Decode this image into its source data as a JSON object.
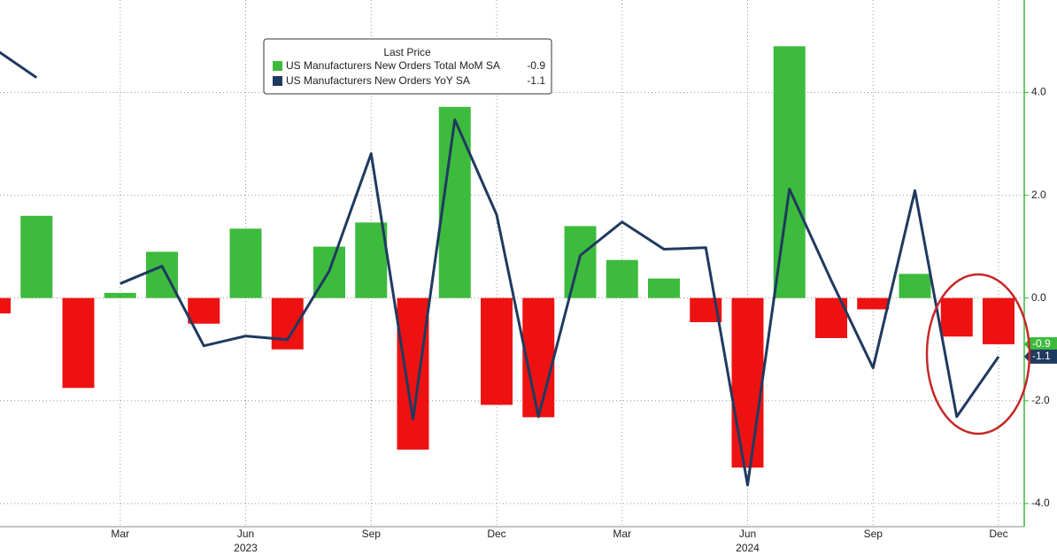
{
  "chart_data": {
    "type": "bar_line",
    "categories": [
      null,
      null,
      null,
      "Mar",
      null,
      null,
      "Jun",
      null,
      null,
      "Sep",
      null,
      null,
      "Dec",
      null,
      null,
      "Mar",
      null,
      null,
      "Jun",
      null,
      null,
      "Sep",
      null,
      null,
      "Dec"
    ],
    "category_years": [
      null,
      null,
      null,
      null,
      null,
      null,
      "2023",
      null,
      null,
      null,
      null,
      null,
      null,
      null,
      null,
      null,
      null,
      null,
      "2024",
      null,
      null,
      null,
      null,
      null,
      null
    ],
    "legend_title": "Last Price",
    "series": [
      {
        "name": "US Manufacturers New Orders Total MoM SA",
        "type": "bar",
        "color": "#3dbb3d",
        "negative_color": "#ee1111",
        "last_label": "-0.9",
        "values": [
          -0.3,
          1.6,
          -1.75,
          0.1,
          0.9,
          -0.5,
          1.35,
          -1.0,
          1.0,
          1.47,
          -2.95,
          3.72,
          -2.08,
          -2.32,
          1.4,
          0.74,
          0.38,
          -0.47,
          -3.3,
          4.9,
          -0.78,
          -0.22,
          0.47,
          -0.75,
          -0.9
        ]
      },
      {
        "name": "US Manufacturers New Orders YoY SA",
        "type": "line",
        "color": "#1f3a5f",
        "last_label": "-1.1",
        "values": [
          4.85,
          4.29,
          null,
          0.28,
          0.62,
          -0.93,
          -0.74,
          -0.81,
          0.53,
          2.81,
          -2.36,
          3.47,
          1.62,
          -2.31,
          0.83,
          1.48,
          0.95,
          0.98,
          -3.64,
          2.12,
          0.34,
          -1.36,
          2.09,
          -2.31,
          -1.14
        ]
      }
    ],
    "ylim": [
      -4.45,
      5.8
    ],
    "yticks": [
      {
        "value": 4,
        "label": "4.0"
      },
      {
        "value": 2,
        "label": "2.0"
      },
      {
        "value": 0,
        "label": "0.0"
      },
      {
        "value": -2,
        "label": "-2.0"
      },
      {
        "value": -4,
        "label": "-4.0"
      }
    ],
    "grid": true,
    "axis_color": "#3dbb3d"
  }
}
